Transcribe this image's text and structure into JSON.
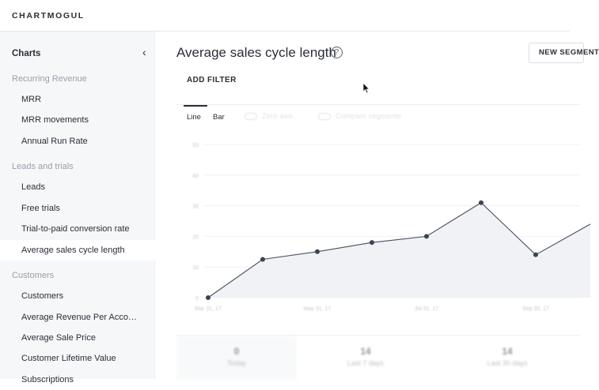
{
  "app": {
    "logo_text": "CHARTMOGUL"
  },
  "sidebar": {
    "title": "Charts",
    "collapse_icon": "chevron-left-icon",
    "sections": [
      {
        "label": "Recurring Revenue",
        "items": [
          "MRR",
          "MRR movements",
          "Annual Run Rate"
        ]
      },
      {
        "label": "Leads and trials",
        "items": [
          "Leads",
          "Free trials",
          "Trial-to-paid conversion rate",
          "Average sales cycle length"
        ]
      },
      {
        "label": "Customers",
        "items": [
          "Customers",
          "Average Revenue Per Acco…",
          "Average Sale Price",
          "Customer Lifetime Value",
          "Subscriptions"
        ]
      }
    ],
    "active_item": "Average sales cycle length"
  },
  "header": {
    "title": "Average sales cycle length",
    "help_icon": "question-circle-icon",
    "help_glyph": "?",
    "new_segment_label": "NEW SEGMENT",
    "add_filter_label": "ADD FILTER"
  },
  "chart_controls": {
    "tabs": [
      "Line",
      "Bar"
    ],
    "active_tab": "Line",
    "toggles": [
      "Zero axis",
      "Compare segments"
    ]
  },
  "chart_data": {
    "type": "line",
    "title": "",
    "xlabel": "",
    "ylabel": "",
    "x_tick_labels": [
      "Mar 31, 17",
      "May 31, 17",
      "Jul 31, 17",
      "Sep 30, 17"
    ],
    "y_tick_labels": [
      "0",
      "10",
      "20",
      "30",
      "40",
      "50"
    ],
    "ylim": [
      0,
      50
    ],
    "grid": true,
    "series": [
      {
        "values": [
          0,
          12.5,
          15,
          18,
          20,
          31,
          14,
          24
        ]
      }
    ],
    "colors": {
      "line": "#4a5062",
      "point": "#3d4354",
      "area": "#f1f2f5"
    }
  },
  "stats": [
    {
      "value": "0",
      "label": "Today"
    },
    {
      "value": "14",
      "label": "Last 7 days"
    },
    {
      "value": "14",
      "label": "Last 30 days"
    }
  ]
}
